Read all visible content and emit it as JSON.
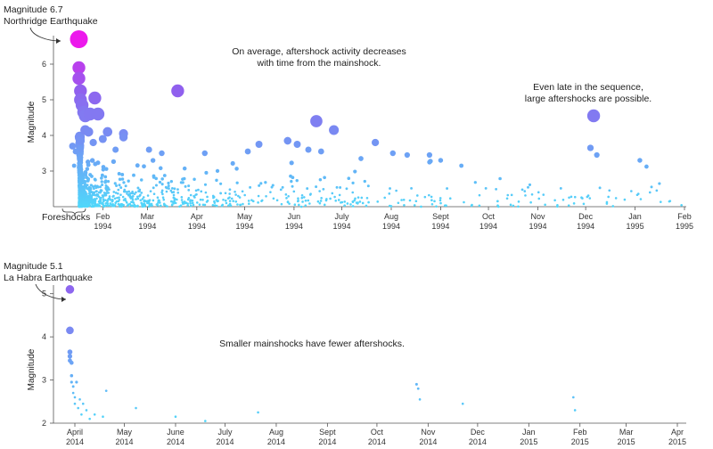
{
  "chart_data": [
    {
      "type": "scatter",
      "ylabel": "Magnitude",
      "ylim": [
        2,
        6.8
      ],
      "x_tick_labels": [
        "Feb\n1994",
        "Mar\n1994",
        "Apr\n1994",
        "May\n1994",
        "Jun\n1994",
        "July\n1994",
        "Aug\n1994",
        "Sept\n1994",
        "Oct\n1994",
        "Nov\n1994",
        "Dec\n1994",
        "Jan\n1995",
        "Feb\n1995"
      ],
      "y_ticks": [
        3,
        4,
        5,
        6
      ],
      "annotations": {
        "mainshock_line1": "Magnitude 6.7",
        "mainshock_line2": "Northridge Earthquake",
        "decrease_line1": "On average, aftershock activity decreases",
        "decrease_line2": "with time from the mainshock.",
        "late_line1": "Even late in the sequence,",
        "late_line2": "large aftershocks are possible.",
        "foreshocks": "Foreshocks"
      },
      "mainshock": {
        "date": "1994-01-17",
        "magnitude": 6.7
      },
      "notable_aftershocks": [
        {
          "date": "1994-01-17",
          "magnitude": 5.9
        },
        {
          "date": "1994-01-17",
          "magnitude": 5.6
        },
        {
          "date": "1994-01-18",
          "magnitude": 5.25
        },
        {
          "date": "1994-01-18",
          "magnitude": 5.0
        },
        {
          "date": "1994-01-19",
          "magnitude": 4.85
        },
        {
          "date": "1994-01-20",
          "magnitude": 4.65
        },
        {
          "date": "1994-01-21",
          "magnitude": 4.55
        },
        {
          "date": "1994-01-24",
          "magnitude": 4.6
        },
        {
          "date": "1994-01-27",
          "magnitude": 5.05
        },
        {
          "date": "1994-01-29",
          "magnitude": 4.6
        },
        {
          "date": "1994-03-20",
          "magnitude": 5.25
        },
        {
          "date": "1994-06-15",
          "magnitude": 4.4
        },
        {
          "date": "1994-06-26",
          "magnitude": 4.15
        },
        {
          "date": "1994-12-06",
          "magnitude": 4.55
        }
      ],
      "aftershocks": [
        {
          "date": "1994-01-21",
          "magnitude": 4.15
        },
        {
          "date": "1994-01-23",
          "magnitude": 4.1
        },
        {
          "date": "1994-01-26",
          "magnitude": 3.8
        },
        {
          "date": "1994-02-01",
          "magnitude": 3.9
        },
        {
          "date": "1994-02-04",
          "magnitude": 4.1
        },
        {
          "date": "1994-02-09",
          "magnitude": 3.6
        },
        {
          "date": "1994-02-14",
          "magnitude": 4.05
        },
        {
          "date": "1994-02-14",
          "magnitude": 3.95
        },
        {
          "date": "1994-03-02",
          "magnitude": 3.6
        },
        {
          "date": "1994-03-10",
          "magnitude": 3.5
        },
        {
          "date": "1994-04-06",
          "magnitude": 3.5
        },
        {
          "date": "1994-05-03",
          "magnitude": 3.55
        },
        {
          "date": "1994-05-10",
          "magnitude": 3.75
        },
        {
          "date": "1994-05-28",
          "magnitude": 3.85
        },
        {
          "date": "1994-06-03",
          "magnitude": 3.75
        },
        {
          "date": "1994-06-10",
          "magnitude": 3.6
        },
        {
          "date": "1994-06-18",
          "magnitude": 3.55
        },
        {
          "date": "1994-07-13",
          "magnitude": 3.35
        },
        {
          "date": "1994-07-22",
          "magnitude": 3.8
        },
        {
          "date": "1994-08-02",
          "magnitude": 3.5
        },
        {
          "date": "1994-08-11",
          "magnitude": 3.45
        },
        {
          "date": "1994-08-25",
          "magnitude": 3.45
        },
        {
          "date": "1994-08-25",
          "magnitude": 3.25
        },
        {
          "date": "1994-09-01",
          "magnitude": 3.3
        },
        {
          "date": "1994-09-14",
          "magnitude": 3.15
        },
        {
          "date": "1994-12-04",
          "magnitude": 3.65
        },
        {
          "date": "1994-12-08",
          "magnitude": 3.45
        },
        {
          "date": "1995-01-04",
          "magnitude": 3.3
        },
        {
          "date": "1994-01-13",
          "magnitude": 3.7
        },
        {
          "date": "1994-01-14",
          "magnitude": 3.15
        },
        {
          "date": "1994-01-15",
          "magnitude": 3.55
        }
      ]
    },
    {
      "type": "scatter",
      "ylabel": "Magnitude",
      "ylim": [
        2,
        5.2
      ],
      "x_tick_labels": [
        "April\n2014",
        "May\n2014",
        "June\n2014",
        "July\n2014",
        "Aug\n2014",
        "Sept\n2014",
        "Oct\n2014",
        "Nov\n2014",
        "Dec\n2014",
        "Jan\n2015",
        "Feb\n2015",
        "Mar\n2015",
        "Apr\n2015"
      ],
      "y_ticks": [
        2,
        3,
        4,
        5
      ],
      "annotations": {
        "mainshock_line1": "Magnitude 5.1",
        "mainshock_line2": "La Habra Earthquake",
        "fewer": "Smaller mainshocks have fewer aftershocks."
      },
      "mainshock": {
        "date": "2014-03-29",
        "magnitude": 5.1
      },
      "aftershocks": [
        {
          "date": "2014-03-29",
          "magnitude": 4.15
        },
        {
          "date": "2014-03-29",
          "magnitude": 3.65
        },
        {
          "date": "2014-03-29",
          "magnitude": 3.55
        },
        {
          "date": "2014-03-29",
          "magnitude": 3.45
        },
        {
          "date": "2014-03-30",
          "magnitude": 3.4
        },
        {
          "date": "2014-03-30",
          "magnitude": 3.1
        },
        {
          "date": "2014-03-30",
          "magnitude": 2.95
        },
        {
          "date": "2014-03-31",
          "magnitude": 2.85
        },
        {
          "date": "2014-03-31",
          "magnitude": 2.7
        },
        {
          "date": "2014-04-01",
          "magnitude": 2.6
        },
        {
          "date": "2014-04-01",
          "magnitude": 2.45
        },
        {
          "date": "2014-04-02",
          "magnitude": 2.95
        },
        {
          "date": "2014-04-03",
          "magnitude": 2.35
        },
        {
          "date": "2014-04-04",
          "magnitude": 2.55
        },
        {
          "date": "2014-04-05",
          "magnitude": 2.2
        },
        {
          "date": "2014-04-06",
          "magnitude": 2.45
        },
        {
          "date": "2014-04-08",
          "magnitude": 2.3
        },
        {
          "date": "2014-04-10",
          "magnitude": 2.1
        },
        {
          "date": "2014-04-13",
          "magnitude": 2.2
        },
        {
          "date": "2014-04-18",
          "magnitude": 2.15
        },
        {
          "date": "2014-04-20",
          "magnitude": 2.75
        },
        {
          "date": "2014-05-08",
          "magnitude": 2.35
        },
        {
          "date": "2014-06-01",
          "magnitude": 2.15
        },
        {
          "date": "2014-06-19",
          "magnitude": 2.05
        },
        {
          "date": "2014-07-21",
          "magnitude": 2.25
        },
        {
          "date": "2014-10-25",
          "magnitude": 2.9
        },
        {
          "date": "2014-10-26",
          "magnitude": 2.8
        },
        {
          "date": "2014-10-27",
          "magnitude": 2.55
        },
        {
          "date": "2014-11-22",
          "magnitude": 2.45
        },
        {
          "date": "2015-01-28",
          "magnitude": 2.6
        },
        {
          "date": "2015-01-29",
          "magnitude": 2.3
        }
      ]
    }
  ]
}
